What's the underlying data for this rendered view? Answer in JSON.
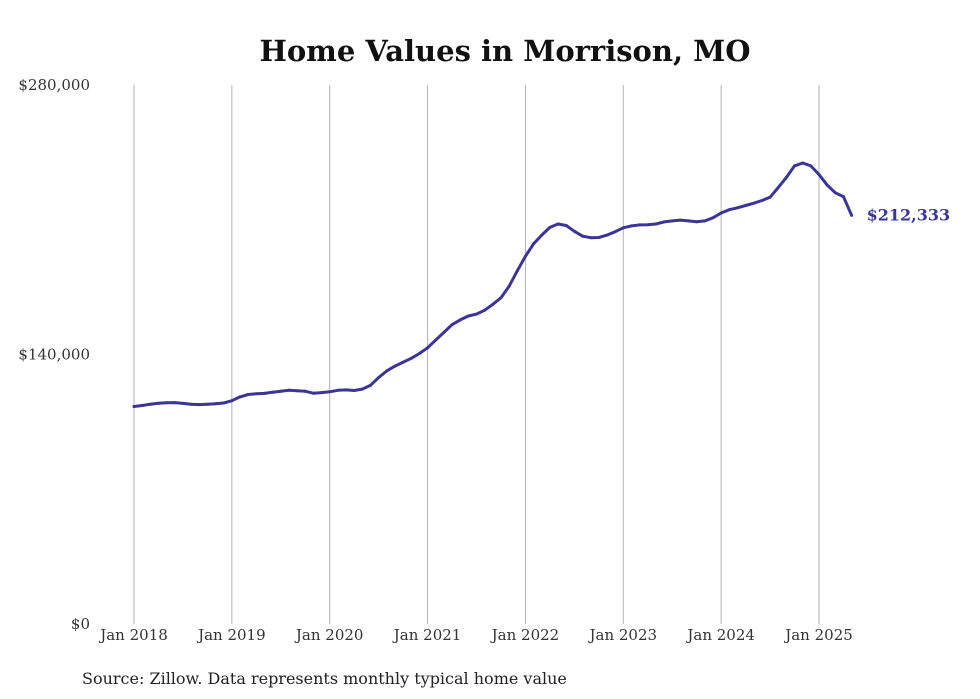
{
  "chart_data": {
    "type": "line",
    "title": "Home Values in Morrison, MO",
    "xlabel": "",
    "ylabel": "",
    "ylim": [
      0,
      280000
    ],
    "y_ticks": [
      {
        "value": 0,
        "label": "$0"
      },
      {
        "value": 140000,
        "label": "$140,000"
      },
      {
        "value": 280000,
        "label": "$280,000"
      }
    ],
    "x_ticks": [
      {
        "value": "2018-01",
        "label": "Jan 2018"
      },
      {
        "value": "2019-01",
        "label": "Jan 2019"
      },
      {
        "value": "2020-01",
        "label": "Jan 2020"
      },
      {
        "value": "2021-01",
        "label": "Jan 2021"
      },
      {
        "value": "2022-01",
        "label": "Jan 2022"
      },
      {
        "value": "2023-01",
        "label": "Jan 2023"
      },
      {
        "value": "2024-01",
        "label": "Jan 2024"
      },
      {
        "value": "2025-01",
        "label": "Jan 2025"
      }
    ],
    "grid": {
      "vertical": true,
      "horizontal": false
    },
    "end_label": "$212,333",
    "series": [
      {
        "color": "#3b3599",
        "points": [
          [
            "2018-01",
            113000
          ],
          [
            "2018-02",
            113500
          ],
          [
            "2018-03",
            114200
          ],
          [
            "2018-04",
            114700
          ],
          [
            "2018-05",
            114900
          ],
          [
            "2018-06",
            115000
          ],
          [
            "2018-07",
            114600
          ],
          [
            "2018-08",
            114200
          ],
          [
            "2018-09",
            114000
          ],
          [
            "2018-10",
            114200
          ],
          [
            "2018-11",
            114400
          ],
          [
            "2018-12",
            114800
          ],
          [
            "2019-01",
            116000
          ],
          [
            "2019-02",
            118000
          ],
          [
            "2019-03",
            119200
          ],
          [
            "2019-04",
            119600
          ],
          [
            "2019-05",
            119800
          ],
          [
            "2019-06",
            120400
          ],
          [
            "2019-07",
            120900
          ],
          [
            "2019-08",
            121400
          ],
          [
            "2019-09",
            121200
          ],
          [
            "2019-10",
            120900
          ],
          [
            "2019-11",
            119900
          ],
          [
            "2019-12",
            120200
          ],
          [
            "2020-01",
            120600
          ],
          [
            "2020-02",
            121400
          ],
          [
            "2020-03",
            121600
          ],
          [
            "2020-04",
            121300
          ],
          [
            "2020-05",
            122000
          ],
          [
            "2020-06",
            124000
          ],
          [
            "2020-07",
            128000
          ],
          [
            "2020-08",
            131500
          ],
          [
            "2020-09",
            134000
          ],
          [
            "2020-10",
            136000
          ],
          [
            "2020-11",
            138000
          ],
          [
            "2020-12",
            140500
          ],
          [
            "2021-01",
            143500
          ],
          [
            "2021-02",
            147500
          ],
          [
            "2021-03",
            151500
          ],
          [
            "2021-04",
            155500
          ],
          [
            "2021-05",
            158000
          ],
          [
            "2021-06",
            160000
          ],
          [
            "2021-07",
            161000
          ],
          [
            "2021-08",
            163000
          ],
          [
            "2021-09",
            166000
          ],
          [
            "2021-10",
            169500
          ],
          [
            "2021-11",
            175500
          ],
          [
            "2021-12",
            183500
          ],
          [
            "2022-01",
            191000
          ],
          [
            "2022-02",
            197500
          ],
          [
            "2022-03",
            202000
          ],
          [
            "2022-04",
            206000
          ],
          [
            "2022-05",
            207800
          ],
          [
            "2022-06",
            207000
          ],
          [
            "2022-07",
            204000
          ],
          [
            "2022-08",
            201500
          ],
          [
            "2022-09",
            200700
          ],
          [
            "2022-10",
            200800
          ],
          [
            "2022-11",
            202000
          ],
          [
            "2022-12",
            203800
          ],
          [
            "2023-01",
            205800
          ],
          [
            "2023-02",
            206800
          ],
          [
            "2023-03",
            207300
          ],
          [
            "2023-04",
            207400
          ],
          [
            "2023-05",
            207800
          ],
          [
            "2023-06",
            208900
          ],
          [
            "2023-07",
            209400
          ],
          [
            "2023-08",
            209800
          ],
          [
            "2023-09",
            209400
          ],
          [
            "2023-10",
            209000
          ],
          [
            "2023-11",
            209400
          ],
          [
            "2023-12",
            211000
          ],
          [
            "2024-01",
            213500
          ],
          [
            "2024-02",
            215200
          ],
          [
            "2024-03",
            216200
          ],
          [
            "2024-04",
            217400
          ],
          [
            "2024-05",
            218600
          ],
          [
            "2024-06",
            220000
          ],
          [
            "2024-07",
            221700
          ],
          [
            "2024-08",
            226700
          ],
          [
            "2024-09",
            232000
          ],
          [
            "2024-10",
            238000
          ],
          [
            "2024-11",
            239500
          ],
          [
            "2024-12",
            238000
          ],
          [
            "2025-01",
            233500
          ],
          [
            "2025-02",
            228000
          ],
          [
            "2025-03",
            224000
          ],
          [
            "2025-04",
            222000
          ],
          [
            "2025-05",
            212333
          ]
        ]
      }
    ]
  },
  "source": "Source: Zillow. Data represents monthly typical home value"
}
